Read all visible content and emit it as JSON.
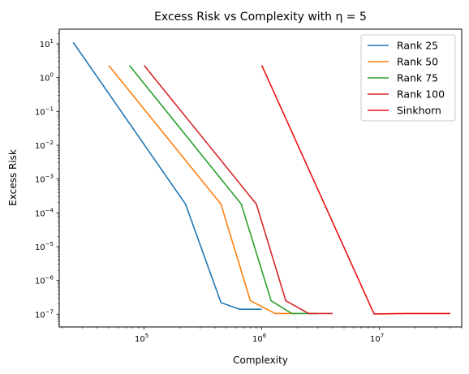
{
  "chart_data": {
    "type": "line",
    "title": "Excess Risk vs Complexity with η = 5",
    "xlabel": "Complexity",
    "ylabel": "Excess Risk",
    "xscale": "log",
    "yscale": "log",
    "xlim": [
      19000,
      50000000
    ],
    "ylim": [
      4.2e-08,
      27
    ],
    "x_ticks": [
      {
        "value": 100000,
        "base": "10",
        "exp": "5"
      },
      {
        "value": 1000000,
        "base": "10",
        "exp": "6"
      },
      {
        "value": 10000000,
        "base": "10",
        "exp": "7"
      }
    ],
    "y_ticks": [
      {
        "value": 1e-07,
        "base": "10",
        "exp": "−7"
      },
      {
        "value": 1e-06,
        "base": "10",
        "exp": "−6"
      },
      {
        "value": 1e-05,
        "base": "10",
        "exp": "−5"
      },
      {
        "value": 0.0001,
        "base": "10",
        "exp": "−4"
      },
      {
        "value": 0.001,
        "base": "10",
        "exp": "−3"
      },
      {
        "value": 0.01,
        "base": "10",
        "exp": "−2"
      },
      {
        "value": 0.1,
        "base": "10",
        "exp": "−1"
      },
      {
        "value": 1,
        "base": "10",
        "exp": "0"
      },
      {
        "value": 10,
        "base": "10",
        "exp": "1"
      }
    ],
    "grid": false,
    "legend_position": "top-right",
    "series": [
      {
        "name": "Rank 25",
        "color": "#1f77b4",
        "x": [
          25000,
          225000,
          450000,
          650000,
          1000000
        ],
        "y": [
          11,
          0.00018,
          2.2e-07,
          1.4e-07,
          1.4e-07
        ]
      },
      {
        "name": "Rank 50",
        "color": "#ff7f0e",
        "x": [
          50000,
          450000,
          800000,
          1300000,
          2000000
        ],
        "y": [
          2.3,
          0.00018,
          2.5e-07,
          1.05e-07,
          1.05e-07
        ]
      },
      {
        "name": "Rank 75",
        "color": "#2ca02c",
        "x": [
          75000,
          670000,
          1200000,
          1800000,
          3000000
        ],
        "y": [
          2.3,
          0.00018,
          2.5e-07,
          1.05e-07,
          1.05e-07
        ]
      },
      {
        "name": "Rank 100",
        "color": "#d62728",
        "x": [
          100000,
          900000,
          1600000,
          2500000,
          4000000
        ],
        "y": [
          2.3,
          0.00018,
          2.5e-07,
          1.05e-07,
          1.05e-07
        ]
      },
      {
        "name": "Sinkhorn",
        "color": "#ee1111",
        "x": [
          1000000,
          9000000,
          17000000,
          40000000
        ],
        "y": [
          2.3,
          1.02e-07,
          1.05e-07,
          1.05e-07
        ]
      }
    ]
  }
}
